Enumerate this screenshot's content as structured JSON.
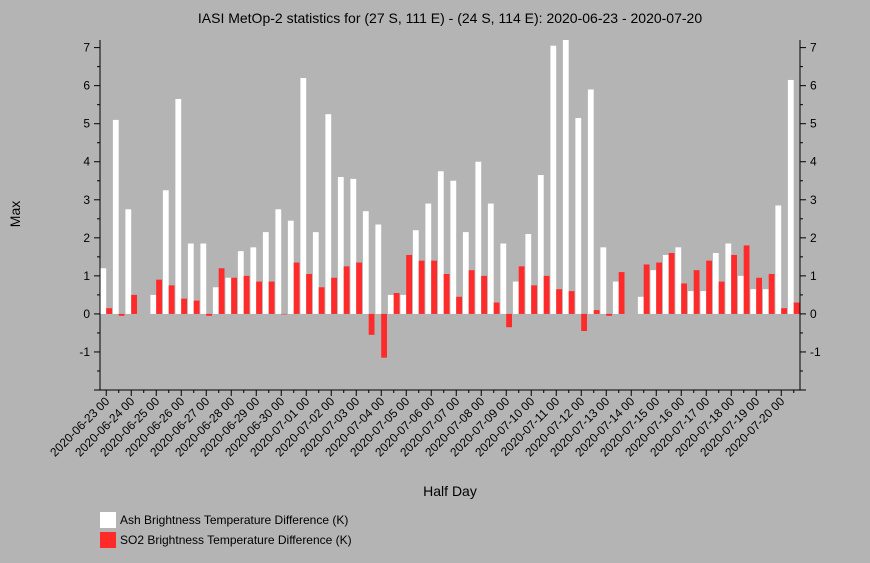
{
  "chart_data": {
    "type": "bar",
    "title": "IASI MetOp-2 statistics for (27 S, 111 E) - (24 S, 114 E): 2020-06-23 - 2020-07-20",
    "xlabel": "Half Day",
    "ylabel": "Max",
    "ylim": [
      -2,
      7.2
    ],
    "yticks": [
      -1,
      0,
      1,
      2,
      3,
      4,
      5,
      6,
      7
    ],
    "grid": false,
    "legend_position": "bottom-left",
    "x_tick_labels": [
      "2020-06-23 00",
      "2020-06-24 00",
      "2020-06-25 00",
      "2020-06-26 00",
      "2020-06-27 00",
      "2020-06-28 00",
      "2020-06-29 00",
      "2020-06-30 00",
      "2020-07-01 00",
      "2020-07-02 00",
      "2020-07-03 00",
      "2020-07-04 00",
      "2020-07-05 00",
      "2020-07-06 00",
      "2020-07-07 00",
      "2020-07-08 00",
      "2020-07-09 00",
      "2020-07-10 00",
      "2020-07-11 00",
      "2020-07-12 00",
      "2020-07-13 00",
      "2020-07-14 00",
      "2020-07-15 00",
      "2020-07-16 00",
      "2020-07-17 00",
      "2020-07-18 00",
      "2020-07-19 00",
      "2020-07-20 00"
    ],
    "categories": [
      "2020-06-23 00",
      "2020-06-23 12",
      "2020-06-24 00",
      "2020-06-24 12",
      "2020-06-25 00",
      "2020-06-25 12",
      "2020-06-26 00",
      "2020-06-26 12",
      "2020-06-27 00",
      "2020-06-27 12",
      "2020-06-28 00",
      "2020-06-28 12",
      "2020-06-29 00",
      "2020-06-29 12",
      "2020-06-30 00",
      "2020-06-30 12",
      "2020-07-01 00",
      "2020-07-01 12",
      "2020-07-02 00",
      "2020-07-02 12",
      "2020-07-03 00",
      "2020-07-03 12",
      "2020-07-04 00",
      "2020-07-04 12",
      "2020-07-05 00",
      "2020-07-05 12",
      "2020-07-06 00",
      "2020-07-06 12",
      "2020-07-07 00",
      "2020-07-07 12",
      "2020-07-08 00",
      "2020-07-08 12",
      "2020-07-09 00",
      "2020-07-09 12",
      "2020-07-10 00",
      "2020-07-10 12",
      "2020-07-11 00",
      "2020-07-11 12",
      "2020-07-12 00",
      "2020-07-12 12",
      "2020-07-13 00",
      "2020-07-13 12",
      "2020-07-14 00",
      "2020-07-14 12",
      "2020-07-15 00",
      "2020-07-15 12",
      "2020-07-16 00",
      "2020-07-16 12",
      "2020-07-17 00",
      "2020-07-17 12",
      "2020-07-18 00",
      "2020-07-18 12",
      "2020-07-19 00",
      "2020-07-19 12",
      "2020-07-20 00",
      "2020-07-20 12"
    ],
    "series": [
      {
        "name": "Ash Brightness Temperature Difference (K)",
        "color": "#ffffff",
        "values": [
          1.2,
          5.1,
          2.75,
          null,
          0.5,
          3.25,
          5.65,
          1.85,
          1.85,
          0.7,
          0.95,
          1.65,
          1.75,
          2.15,
          2.75,
          2.45,
          6.2,
          2.15,
          5.25,
          3.6,
          3.55,
          2.7,
          2.35,
          0.5,
          0.5,
          2.2,
          2.9,
          3.75,
          3.5,
          2.15,
          4.0,
          2.9,
          1.85,
          0.85,
          2.1,
          3.65,
          7.05,
          7.2,
          5.15,
          5.9,
          1.75,
          0.85,
          null,
          0.45,
          1.15,
          1.55,
          1.75,
          0.6,
          0.6,
          1.6,
          1.85,
          1.0,
          0.65,
          0.65,
          2.85,
          6.15
        ]
      },
      {
        "name": "SO2 Brightness Temperature Difference (K)",
        "color": "#ff2a2a",
        "values": [
          0.15,
          -0.05,
          0.5,
          null,
          0.9,
          0.75,
          0.4,
          0.35,
          -0.05,
          1.2,
          0.95,
          1.0,
          0.85,
          0.85,
          0.0,
          1.35,
          1.05,
          0.7,
          0.95,
          1.25,
          1.35,
          -0.55,
          -1.15,
          0.55,
          1.55,
          1.4,
          1.4,
          1.05,
          0.45,
          1.15,
          1.0,
          0.3,
          -0.35,
          1.25,
          0.75,
          1.0,
          0.65,
          0.6,
          -0.45,
          0.1,
          -0.05,
          1.1,
          null,
          1.3,
          1.35,
          1.6,
          0.8,
          1.15,
          1.4,
          0.85,
          1.55,
          1.8,
          0.95,
          1.05,
          0.15,
          0.3
        ]
      }
    ]
  }
}
